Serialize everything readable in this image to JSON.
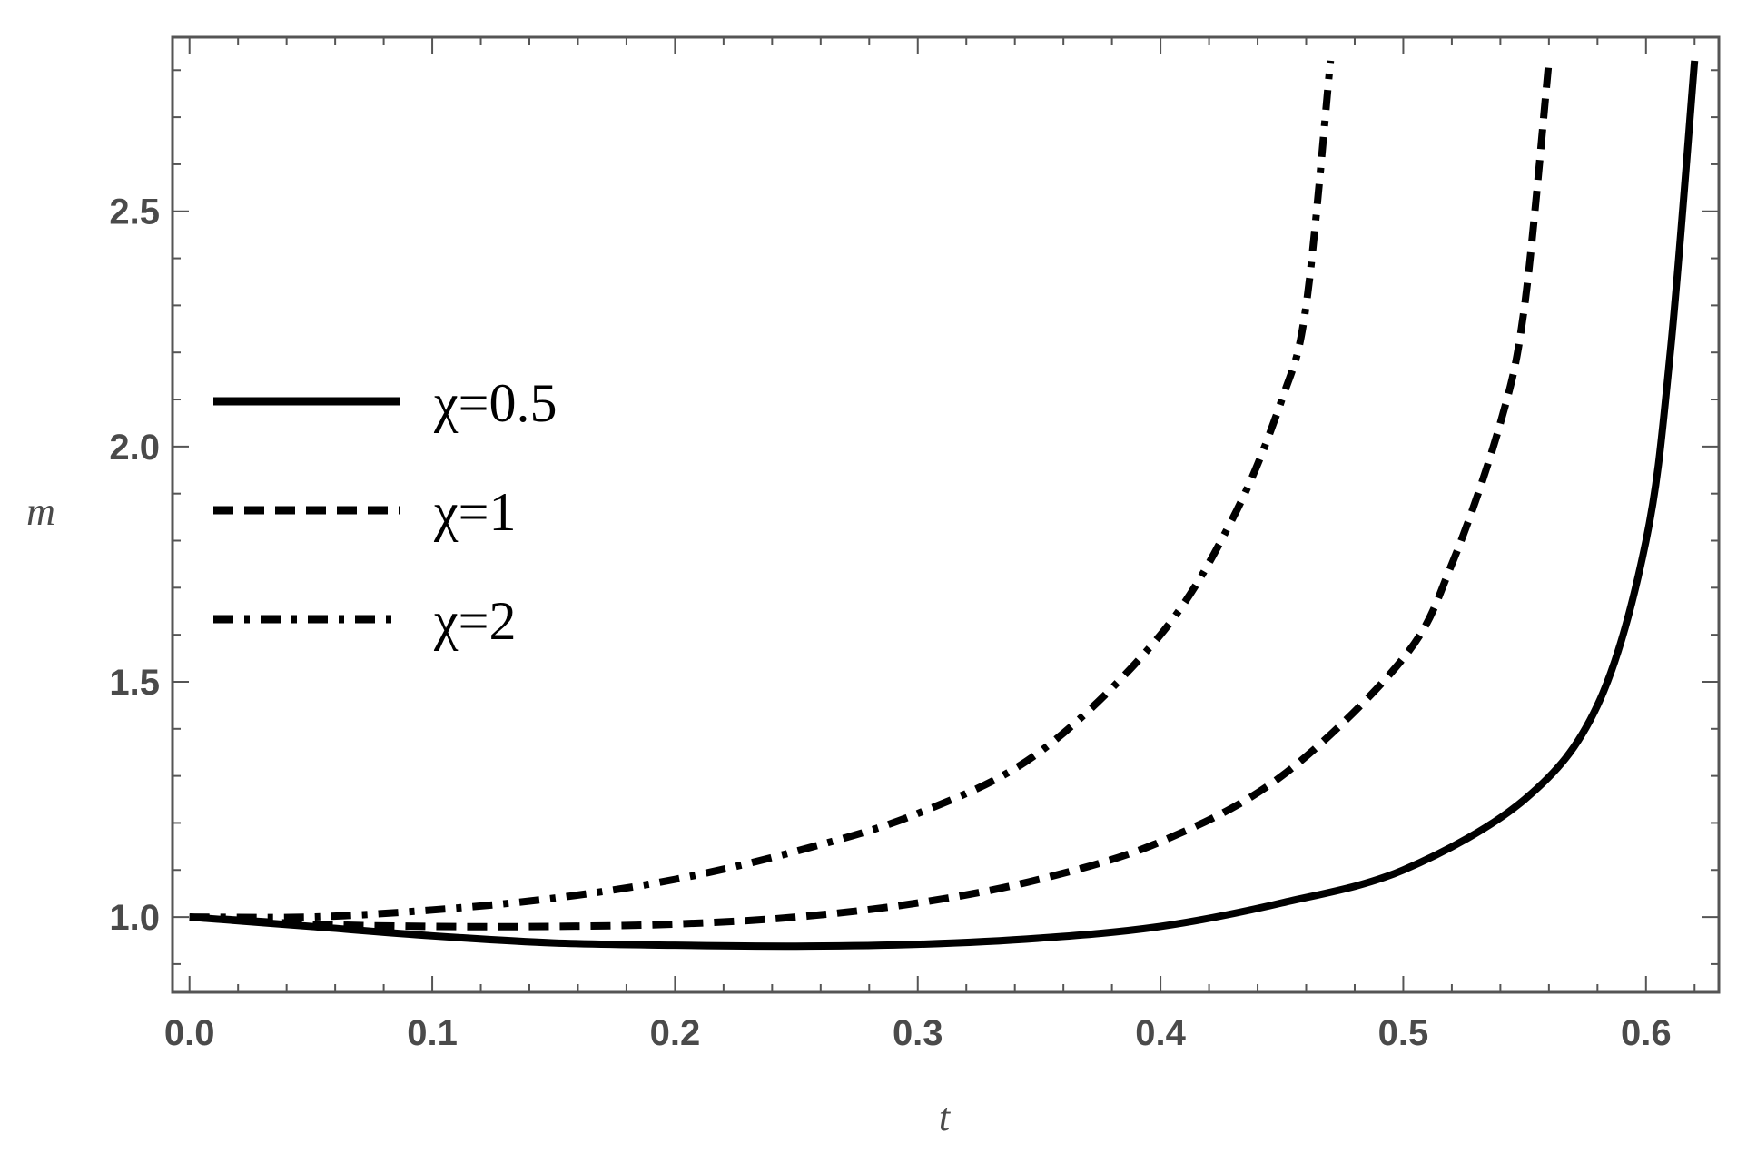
{
  "chart_data": {
    "type": "line",
    "title": "",
    "xlabel": "t",
    "ylabel": "m",
    "xlim": [
      -0.007,
      0.63
    ],
    "ylim": [
      0.84,
      2.87
    ],
    "x_ticks": [
      "0.0",
      "0.1",
      "0.2",
      "0.3",
      "0.4",
      "0.5",
      "0.6"
    ],
    "y_ticks": [
      "1.0",
      "1.5",
      "2.0",
      "2.5"
    ],
    "grid": false,
    "legend_position": "left",
    "series": [
      {
        "name": "χ=0.5",
        "style": "solid",
        "color": "#000000",
        "x": [
          0.0,
          0.05,
          0.1,
          0.15,
          0.2,
          0.25,
          0.3,
          0.35,
          0.4,
          0.45,
          0.5,
          0.55,
          0.58,
          0.6,
          0.61,
          0.62
        ],
        "y": [
          1.0,
          0.98,
          0.96,
          0.945,
          0.94,
          0.938,
          0.942,
          0.955,
          0.98,
          1.03,
          1.1,
          1.25,
          1.45,
          1.8,
          2.2,
          2.82
        ]
      },
      {
        "name": "χ=1",
        "style": "dashed",
        "color": "#000000",
        "x": [
          0.0,
          0.05,
          0.1,
          0.15,
          0.2,
          0.25,
          0.3,
          0.35,
          0.4,
          0.45,
          0.5,
          0.52,
          0.54,
          0.55,
          0.56
        ],
        "y": [
          1.0,
          0.985,
          0.98,
          0.98,
          0.985,
          1.0,
          1.03,
          1.08,
          1.16,
          1.3,
          1.55,
          1.75,
          2.05,
          2.3,
          2.82
        ]
      },
      {
        "name": "χ=2",
        "style": "dash-dot",
        "color": "#000000",
        "x": [
          0.0,
          0.05,
          0.1,
          0.15,
          0.2,
          0.25,
          0.3,
          0.35,
          0.4,
          0.43,
          0.45,
          0.46,
          0.47
        ],
        "y": [
          1.0,
          1.0,
          1.015,
          1.04,
          1.08,
          1.14,
          1.22,
          1.35,
          1.6,
          1.85,
          2.1,
          2.3,
          2.82
        ]
      }
    ]
  }
}
